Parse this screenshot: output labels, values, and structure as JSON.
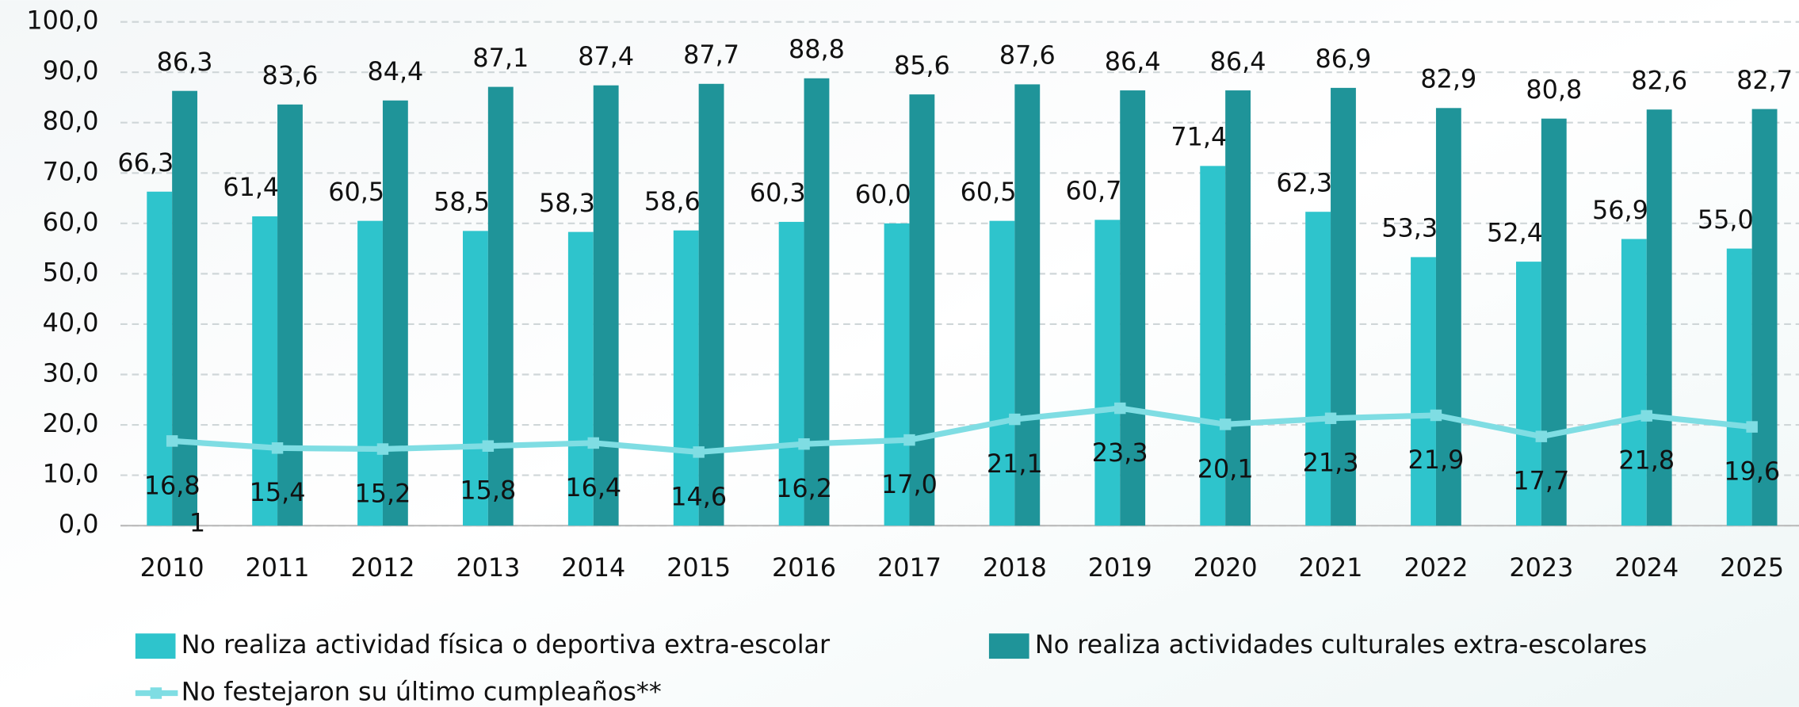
{
  "chart_data": {
    "type": "bar",
    "categories": [
      "2010",
      "2011",
      "2012",
      "2013",
      "2014",
      "2015",
      "2016",
      "2017",
      "2018",
      "2019",
      "2020",
      "2021",
      "2022",
      "2023",
      "2024",
      "2025"
    ],
    "series": [
      {
        "name": "No realiza actividad física o deportiva extra-escolar",
        "color": "#2ec4cc",
        "type": "bar",
        "values": [
          66.3,
          61.4,
          60.5,
          58.5,
          58.3,
          58.6,
          60.3,
          60.0,
          60.5,
          60.7,
          71.4,
          62.3,
          53.3,
          52.4,
          56.9,
          55.0
        ],
        "value_labels": [
          "66,3",
          "61,4",
          "60,5",
          "58,5",
          "58,3",
          "58,6",
          "60,3",
          "60,0",
          "60,5",
          "60,7",
          "71,4",
          "62,3",
          "53,3",
          "52,4",
          "56,9",
          "55,0"
        ]
      },
      {
        "name": "No realiza actividades culturales extra-escolares",
        "color": "#1f9499",
        "type": "bar",
        "values": [
          86.3,
          83.6,
          84.4,
          87.1,
          87.4,
          87.7,
          88.8,
          85.6,
          87.6,
          86.4,
          86.4,
          86.9,
          82.9,
          80.8,
          82.6,
          82.7
        ],
        "value_labels": [
          "86,3",
          "83,6",
          "84,4",
          "87,1",
          "87,4",
          "87,7",
          "88,8",
          "85,6",
          "87,6",
          "86,4",
          "86,4",
          "86,9",
          "82,9",
          "80,8",
          "82,6",
          "82,7"
        ]
      },
      {
        "name": "No festejaron su último cumpleaños**",
        "color": "#7fdde3",
        "type": "line",
        "values": [
          16.8,
          15.4,
          15.2,
          15.8,
          16.4,
          14.6,
          16.2,
          17.0,
          21.1,
          23.3,
          20.1,
          21.3,
          21.9,
          17.7,
          21.8,
          19.6
        ],
        "value_labels": [
          "16,8",
          "15,4",
          "15,2",
          "15,8",
          "16,4",
          "14,6",
          "16,2",
          "17,0",
          "21,1",
          "23,3",
          "20,1",
          "21,3",
          "21,9",
          "17,7",
          "21,8",
          "19,6"
        ]
      }
    ],
    "annotations": [
      "1"
    ],
    "ylim": [
      0,
      100
    ],
    "yticks": [
      {
        "value": 0,
        "label": "0,0"
      },
      {
        "value": 10,
        "label": "10,0"
      },
      {
        "value": 20,
        "label": "20,0"
      },
      {
        "value": 30,
        "label": "30,0"
      },
      {
        "value": 40,
        "label": "40,0"
      },
      {
        "value": 50,
        "label": "50,0"
      },
      {
        "value": 60,
        "label": "60,0"
      },
      {
        "value": 70,
        "label": "70,0"
      },
      {
        "value": 80,
        "label": "80,0"
      },
      {
        "value": 90,
        "label": "90,0"
      },
      {
        "value": 100,
        "label": "100,0"
      }
    ],
    "grid": true
  }
}
